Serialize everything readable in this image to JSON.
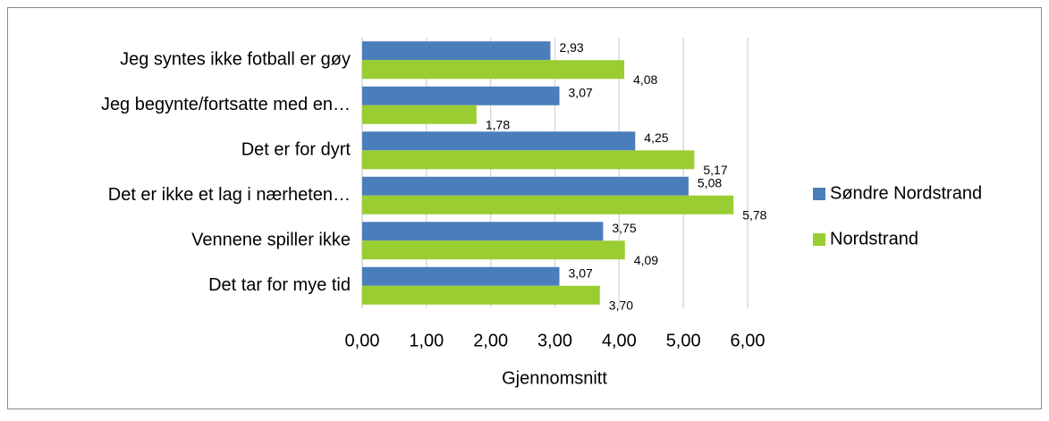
{
  "chart_data": {
    "type": "bar",
    "orientation": "horizontal",
    "x_label": "Gjennomsnitt",
    "categories": [
      "Jeg syntes ikke fotball er gøy",
      "Jeg begynte/fortsatte med en…",
      "Det er for dyrt",
      "Det er ikke et lag i nærheten…",
      "Vennene spiller ikke",
      "Det tar for mye tid"
    ],
    "series": [
      {
        "name": "Søndre Nordstrand",
        "color": "#4a7ebb",
        "values": [
          2.93,
          3.07,
          4.25,
          5.08,
          3.75,
          3.07
        ],
        "value_labels": [
          "2,93",
          "3,07",
          "4,25",
          "5,08",
          "3,75",
          "3,07"
        ]
      },
      {
        "name": "Nordstrand",
        "color": "#9acd32",
        "values": [
          4.08,
          1.78,
          5.17,
          5.78,
          4.09,
          3.7
        ],
        "value_labels": [
          "4,08",
          "1,78",
          "5,17",
          "5,78",
          "4,09",
          "3,70"
        ]
      }
    ],
    "xlim": [
      0,
      6
    ],
    "xticks": [
      {
        "value": 0,
        "label": "0,00"
      },
      {
        "value": 1,
        "label": "1,00"
      },
      {
        "value": 2,
        "label": "2,00"
      },
      {
        "value": 3,
        "label": "3,00"
      },
      {
        "value": 4,
        "label": "4,00"
      },
      {
        "value": 5,
        "label": "5,00"
      },
      {
        "value": 6,
        "label": "6,00"
      }
    ],
    "grid": true,
    "legend": "right"
  }
}
